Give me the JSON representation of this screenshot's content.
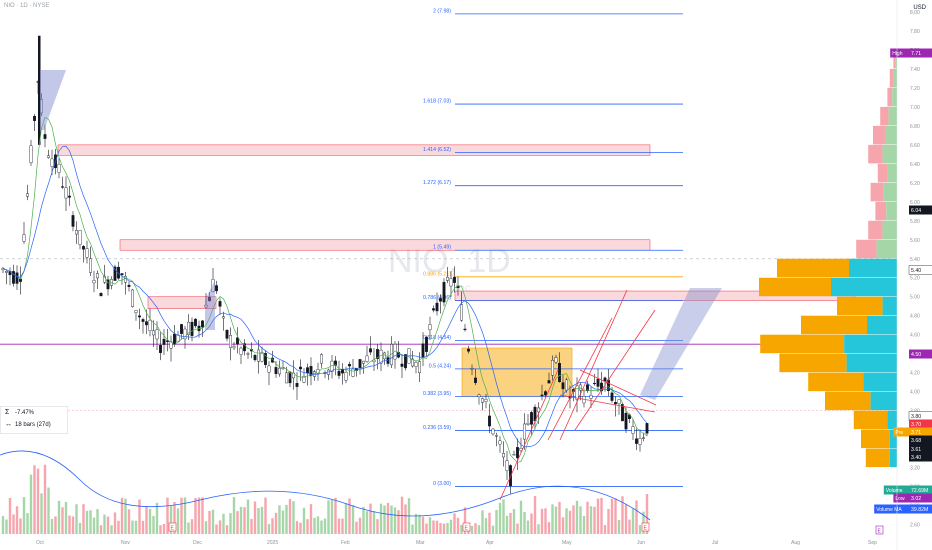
{
  "header": {
    "title": "NIO · 1D · NYSE",
    "currency": "USD"
  },
  "watermark": {
    "text": "NIO, 1D",
    "subtext": "Inc."
  },
  "measure": {
    "pct": "-7.47%",
    "bars": "18 bars (27d)"
  },
  "chart_data": {
    "type": "candlestick",
    "price_axis": {
      "range": [
        2.5,
        8.0
      ],
      "ticks": [
        "2.60",
        "2.80",
        "3.00",
        "3.20",
        "3.60",
        "3.80",
        "4.00",
        "4.20",
        "4.40",
        "4.60",
        "4.80",
        "5.00",
        "5.20",
        "5.40",
        "5.60",
        "5.80",
        "6.00",
        "6.20",
        "6.40",
        "6.60",
        "6.80",
        "7.00",
        "7.20",
        "7.40",
        "7.60",
        "7.80",
        "8.00"
      ]
    },
    "time_axis": {
      "labels": [
        "Oct",
        "Nov",
        "Dec",
        "2025",
        "Feb",
        "Mar",
        "Apr",
        "May",
        "Jun",
        "Jul",
        "Aug",
        "Sep"
      ]
    },
    "candles_sample": [
      {
        "o": 5.4,
        "h": 5.5,
        "l": 5.0,
        "c": 5.1
      },
      {
        "o": 5.1,
        "h": 7.75,
        "l": 5.0,
        "c": 7.3
      },
      {
        "o": 7.3,
        "h": 7.5,
        "l": 6.6,
        "c": 6.8
      },
      {
        "o": 6.8,
        "h": 7.0,
        "l": 5.9,
        "c": 6.1
      },
      {
        "o": 6.1,
        "h": 6.3,
        "l": 5.2,
        "c": 5.5
      },
      {
        "o": 5.5,
        "h": 5.7,
        "l": 4.9,
        "c": 5.0
      },
      {
        "o": 5.0,
        "h": 5.3,
        "l": 4.6,
        "c": 4.8
      },
      {
        "o": 4.8,
        "h": 5.3,
        "l": 4.4,
        "c": 4.5
      },
      {
        "o": 4.5,
        "h": 4.7,
        "l": 4.1,
        "c": 4.2
      },
      {
        "o": 4.2,
        "h": 4.6,
        "l": 4.1,
        "c": 4.4
      },
      {
        "o": 4.4,
        "h": 4.6,
        "l": 4.2,
        "c": 4.3
      },
      {
        "o": 4.3,
        "h": 5.4,
        "l": 4.2,
        "c": 5.2
      },
      {
        "o": 5.2,
        "h": 5.3,
        "l": 4.6,
        "c": 4.8
      },
      {
        "o": 4.8,
        "h": 4.9,
        "l": 3.9,
        "c": 4.0
      },
      {
        "o": 4.0,
        "h": 4.0,
        "l": 3.0,
        "c": 3.1
      },
      {
        "o": 3.1,
        "h": 3.6,
        "l": 3.0,
        "c": 3.5
      },
      {
        "o": 3.5,
        "h": 4.4,
        "l": 3.4,
        "c": 4.3
      },
      {
        "o": 4.3,
        "h": 4.4,
        "l": 3.9,
        "c": 4.0
      },
      {
        "o": 4.0,
        "h": 4.1,
        "l": 3.7,
        "c": 3.8
      },
      {
        "o": 3.8,
        "h": 4.0,
        "l": 3.5,
        "c": 3.6
      },
      {
        "o": 3.6,
        "h": 3.8,
        "l": 3.4,
        "c": 3.7
      }
    ],
    "fib_levels": [
      {
        "label": "2 (7.98)",
        "value": 7.98
      },
      {
        "label": "1.618 (7.03)",
        "value": 7.03
      },
      {
        "label": "1.414 (6.52)",
        "value": 6.52
      },
      {
        "label": "1.272 (6.17)",
        "value": 6.17
      },
      {
        "label": "1 (5.49)",
        "value": 5.49
      },
      {
        "label": "0.886 (5.21)",
        "value": 5.21
      },
      {
        "label": "0.786 (4.96)",
        "value": 4.96
      },
      {
        "label": "0.618 (4.54)",
        "value": 4.54
      },
      {
        "label": "0.5 (4.24)",
        "value": 4.24
      },
      {
        "label": "0.382 (3.95)",
        "value": 3.95
      },
      {
        "label": "0.236 (3.59)",
        "value": 3.59
      },
      {
        "label": "0 (3.00)",
        "value": 3.0
      }
    ],
    "price_tags": [
      {
        "label": "High",
        "value": "7.71",
        "color": "#9c27b0"
      },
      {
        "label": "",
        "value": "6.04",
        "color": "#131722"
      },
      {
        "label": "",
        "value": "5.40",
        "color": "#ffffff"
      },
      {
        "label": "",
        "value": "4.50",
        "color": "#9c27b0"
      },
      {
        "label": "",
        "value": "3.80",
        "color": "#ffffff"
      },
      {
        "label": "",
        "value": "3.70",
        "color": "#f23645"
      },
      {
        "label": "Pre",
        "value": "3.71",
        "color": "#f7a600"
      },
      {
        "label": "",
        "value": "3.68",
        "color": "#131722"
      },
      {
        "label": "",
        "value": "3.61",
        "color": "#131722"
      },
      {
        "label": "",
        "value": "3.40",
        "color": "#131722"
      },
      {
        "label": "Volume",
        "value": "72.69M",
        "color": "#22ab94"
      },
      {
        "label": "Low",
        "value": "3.02",
        "color": "#9c27b0"
      },
      {
        "label": "Volume MA",
        "value": "39.82M",
        "color": "#2962ff"
      }
    ],
    "zones": [
      {
        "name": "resistance",
        "from": 6.49,
        "to": 6.6
      },
      {
        "name": "resistance",
        "from": 5.49,
        "to": 5.6
      },
      {
        "name": "resistance",
        "from": 4.96,
        "to": 5.06
      },
      {
        "name": "demand",
        "from": 3.95,
        "to": 4.46
      }
    ],
    "colors": {
      "up": "#22ab94",
      "down": "#f23645",
      "fib": "#2962ff",
      "fib_mid": "#f7a600",
      "zone": "#f8c9cf",
      "orange_zone": "#f7a600",
      "vp_up": "#26c6da",
      "vp_down": "#f7a600"
    },
    "grid": false
  }
}
